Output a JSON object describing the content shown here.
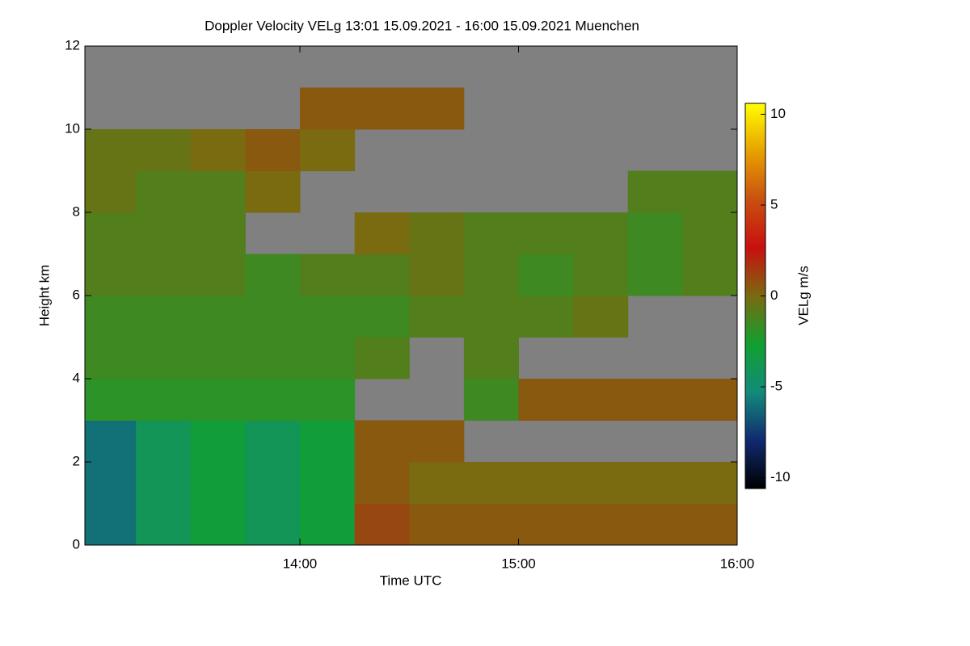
{
  "chart_data": {
    "type": "heatmap",
    "title": "Doppler Velocity VELg   13:01 15.09.2021 - 16:00 15.09.2021 Muenchen",
    "x_label": "Time UTC",
    "y_label": "Height km",
    "colorbar_label": "VELg m/s",
    "x_edges": [
      781,
      795,
      810,
      825,
      840,
      855,
      870,
      885,
      900,
      915,
      930,
      945,
      960
    ],
    "y_edges": [
      0,
      1,
      2,
      3,
      4,
      5,
      6,
      7,
      8,
      9,
      10,
      11,
      12
    ],
    "z": [
      [
        -6,
        -4,
        -3,
        -4,
        -3,
        1,
        0.5,
        0.5,
        0.5,
        0.5,
        0.5,
        0.5
      ],
      [
        -6,
        -4,
        -3,
        -4,
        -3,
        0.5,
        0,
        0,
        0,
        0,
        0,
        0
      ],
      [
        -6,
        -4,
        -3,
        -4,
        -3,
        0.5,
        0.5,
        null,
        null,
        null,
        null,
        null
      ],
      [
        -2,
        -2,
        -2,
        -2,
        -2,
        null,
        null,
        -1.5,
        0.5,
        0.5,
        0.5,
        0.5
      ],
      [
        -1.5,
        -1.5,
        -1.5,
        -1.5,
        -1.5,
        -1,
        null,
        -1,
        null,
        null,
        null,
        null
      ],
      [
        -1.5,
        -1.5,
        -1.5,
        -1.5,
        -1.5,
        -1.5,
        -1,
        -1,
        -1,
        -0.5,
        null,
        null
      ],
      [
        -1,
        -1,
        -1,
        -1.5,
        -1,
        -1,
        -0.5,
        -1,
        -1.5,
        -1,
        -1.5,
        -1
      ],
      [
        -1,
        -1,
        -1,
        null,
        null,
        0,
        -0.5,
        -1,
        -1,
        -1,
        -1.5,
        -1
      ],
      [
        -0.5,
        -1,
        -1,
        0,
        null,
        null,
        null,
        null,
        null,
        null,
        -1,
        -1
      ],
      [
        -0.5,
        -0.5,
        0,
        0.5,
        0,
        null,
        null,
        null,
        null,
        null,
        null,
        null
      ],
      [
        null,
        null,
        null,
        null,
        0.5,
        0.5,
        0.5,
        null,
        null,
        null,
        null,
        null
      ],
      [
        null,
        null,
        null,
        null,
        null,
        null,
        null,
        null,
        null,
        null,
        null,
        null
      ]
    ],
    "missing_color": "#808080",
    "colormap": [
      "#000000",
      "#102a70",
      "#138a7a",
      "#11a030",
      "#7a6a10",
      "#c81010",
      "#c85010",
      "#e8a000",
      "#ffff00"
    ],
    "clim": [
      -10.6,
      10.6
    ],
    "cticks": [
      -10,
      -5,
      0,
      5,
      10
    ],
    "xlim": [
      781,
      960
    ],
    "xticks": [
      {
        "value": 840,
        "label": "14:00"
      },
      {
        "value": 900,
        "label": "15:00"
      },
      {
        "value": 960,
        "label": "16:00"
      }
    ],
    "ylim": [
      0,
      12
    ],
    "yticks": [
      0,
      2,
      4,
      6,
      8,
      10,
      12
    ]
  }
}
